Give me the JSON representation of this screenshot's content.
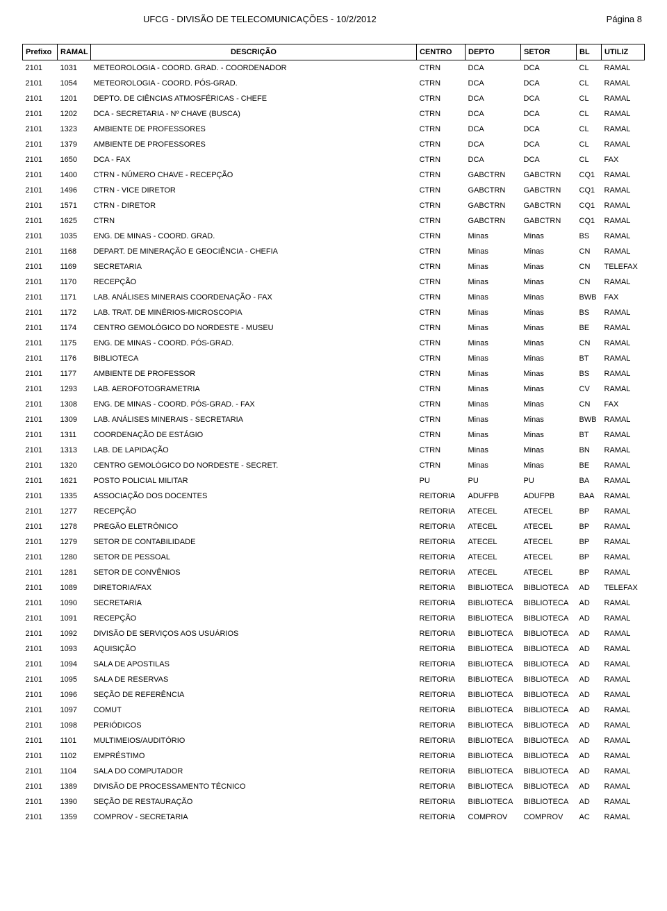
{
  "header": {
    "title": "UFCG - DIVISÃO DE TELECOMUNICAÇÕES  -  10/2/2012",
    "page": "Página 8"
  },
  "columns": [
    "Prefixo",
    "RAMAL",
    "DESCRIÇÃO",
    "CENTRO",
    "DEPTO",
    "SETOR",
    "BL",
    "UTILIZ"
  ],
  "rows": [
    [
      "2101",
      "1031",
      "METEOROLOGIA - COORD. GRAD. - COORDENADOR",
      "CTRN",
      "DCA",
      "DCA",
      "CL",
      "RAMAL"
    ],
    [
      "2101",
      "1054",
      "METEOROLOGIA - COORD. PÓS-GRAD.",
      "CTRN",
      "DCA",
      "DCA",
      "CL",
      "RAMAL"
    ],
    [
      "2101",
      "1201",
      "DEPTO. DE CIÊNCIAS ATMOSFÉRICAS - CHEFE",
      "CTRN",
      "DCA",
      "DCA",
      "CL",
      "RAMAL"
    ],
    [
      "2101",
      "1202",
      "DCA - SECRETARIA - Nº CHAVE (BUSCA)",
      "CTRN",
      "DCA",
      "DCA",
      "CL",
      "RAMAL"
    ],
    [
      "2101",
      "1323",
      "AMBIENTE DE PROFESSORES",
      "CTRN",
      "DCA",
      "DCA",
      "CL",
      "RAMAL"
    ],
    [
      "2101",
      "1379",
      "AMBIENTE DE PROFESSORES",
      "CTRN",
      "DCA",
      "DCA",
      "CL",
      "RAMAL"
    ],
    [
      "2101",
      "1650",
      "DCA - FAX",
      "CTRN",
      "DCA",
      "DCA",
      "CL",
      "FAX"
    ],
    [
      "2101",
      "1400",
      "CTRN - NÚMERO CHAVE - RECEPÇÃO",
      "CTRN",
      "GABCTRN",
      "GABCTRN",
      "CQ1",
      "RAMAL"
    ],
    [
      "2101",
      "1496",
      "CTRN - VICE DIRETOR",
      "CTRN",
      "GABCTRN",
      "GABCTRN",
      "CQ1",
      "RAMAL"
    ],
    [
      "2101",
      "1571",
      "CTRN - DIRETOR",
      "CTRN",
      "GABCTRN",
      "GABCTRN",
      "CQ1",
      "RAMAL"
    ],
    [
      "2101",
      "1625",
      "CTRN",
      "CTRN",
      "GABCTRN",
      "GABCTRN",
      "CQ1",
      "RAMAL"
    ],
    [
      "2101",
      "1035",
      "ENG. DE MINAS - COORD. GRAD.",
      "CTRN",
      "Minas",
      "Minas",
      "BS",
      "RAMAL"
    ],
    [
      "2101",
      "1168",
      "DEPART. DE MINERAÇÃO E GEOCIÊNCIA - CHEFIA",
      "CTRN",
      "Minas",
      "Minas",
      "CN",
      "RAMAL"
    ],
    [
      "2101",
      "1169",
      "SECRETARIA",
      "CTRN",
      "Minas",
      "Minas",
      "CN",
      "TELEFAX"
    ],
    [
      "2101",
      "1170",
      "RECEPÇÃO",
      "CTRN",
      "Minas",
      "Minas",
      "CN",
      "RAMAL"
    ],
    [
      "2101",
      "1171",
      "LAB. ANÁLISES MINERAIS COORDENAÇÃO - FAX",
      "CTRN",
      "Minas",
      "Minas",
      "BWB",
      "FAX"
    ],
    [
      "2101",
      "1172",
      "LAB. TRAT. DE MINÉRIOS-MICROSCOPIA",
      "CTRN",
      "Minas",
      "Minas",
      "BS",
      "RAMAL"
    ],
    [
      "2101",
      "1174",
      "CENTRO GEMOLÓGICO DO NORDESTE - MUSEU",
      "CTRN",
      "Minas",
      "Minas",
      "BE",
      "RAMAL"
    ],
    [
      "2101",
      "1175",
      "ENG. DE MINAS - COORD. PÓS-GRAD.",
      "CTRN",
      "Minas",
      "Minas",
      "CN",
      "RAMAL"
    ],
    [
      "2101",
      "1176",
      "BIBLIOTECA",
      "CTRN",
      "Minas",
      "Minas",
      "BT",
      "RAMAL"
    ],
    [
      "2101",
      "1177",
      "AMBIENTE DE PROFESSOR",
      "CTRN",
      "Minas",
      "Minas",
      "BS",
      "RAMAL"
    ],
    [
      "2101",
      "1293",
      "LAB. AEROFOTOGRAMETRIA",
      "CTRN",
      "Minas",
      "Minas",
      "CV",
      "RAMAL"
    ],
    [
      "2101",
      "1308",
      "ENG. DE MINAS - COORD. PÓS-GRAD. - FAX",
      "CTRN",
      "Minas",
      "Minas",
      "CN",
      "FAX"
    ],
    [
      "2101",
      "1309",
      "LAB. ANÁLISES MINERAIS - SECRETARIA",
      "CTRN",
      "Minas",
      "Minas",
      "BWB",
      "RAMAL"
    ],
    [
      "2101",
      "1311",
      "COORDENAÇÃO DE ESTÁGIO",
      "CTRN",
      "Minas",
      "Minas",
      "BT",
      "RAMAL"
    ],
    [
      "2101",
      "1313",
      "LAB. DE LAPIDAÇÃO",
      "CTRN",
      "Minas",
      "Minas",
      "BN",
      "RAMAL"
    ],
    [
      "2101",
      "1320",
      "CENTRO GEMOLÓGICO DO NORDESTE - SECRET.",
      "CTRN",
      "Minas",
      "Minas",
      "BE",
      "RAMAL"
    ],
    [
      "2101",
      "1621",
      "POSTO POLICIAL MILITAR",
      "PU",
      "PU",
      "PU",
      "BA",
      "RAMAL"
    ],
    [
      "2101",
      "1335",
      "ASSOCIAÇÃO DOS DOCENTES",
      "REITORIA",
      "ADUFPB",
      "ADUFPB",
      "BAA",
      "RAMAL"
    ],
    [
      "2101",
      "1277",
      "RECEPÇÃO",
      "REITORIA",
      "ATECEL",
      "ATECEL",
      "BP",
      "RAMAL"
    ],
    [
      "2101",
      "1278",
      "PREGÃO ELETRÔNICO",
      "REITORIA",
      "ATECEL",
      "ATECEL",
      "BP",
      "RAMAL"
    ],
    [
      "2101",
      "1279",
      "SETOR DE CONTABILIDADE",
      "REITORIA",
      "ATECEL",
      "ATECEL",
      "BP",
      "RAMAL"
    ],
    [
      "2101",
      "1280",
      "SETOR DE PESSOAL",
      "REITORIA",
      "ATECEL",
      "ATECEL",
      "BP",
      "RAMAL"
    ],
    [
      "2101",
      "1281",
      "SETOR DE CONVÊNIOS",
      "REITORIA",
      "ATECEL",
      "ATECEL",
      "BP",
      "RAMAL"
    ],
    [
      "2101",
      "1089",
      "DIRETORIA/FAX",
      "REITORIA",
      "BIBLIOTECA",
      "BIBLIOTECA",
      "AD",
      "TELEFAX"
    ],
    [
      "2101",
      "1090",
      "SECRETARIA",
      "REITORIA",
      "BIBLIOTECA",
      "BIBLIOTECA",
      "AD",
      "RAMAL"
    ],
    [
      "2101",
      "1091",
      "RECEPÇÃO",
      "REITORIA",
      "BIBLIOTECA",
      "BIBLIOTECA",
      "AD",
      "RAMAL"
    ],
    [
      "2101",
      "1092",
      "DIVISÃO DE SERVIÇOS AOS USUÁRIOS",
      "REITORIA",
      "BIBLIOTECA",
      "BIBLIOTECA",
      "AD",
      "RAMAL"
    ],
    [
      "2101",
      "1093",
      "AQUISIÇÃO",
      "REITORIA",
      "BIBLIOTECA",
      "BIBLIOTECA",
      "AD",
      "RAMAL"
    ],
    [
      "2101",
      "1094",
      "SALA DE APOSTILAS",
      "REITORIA",
      "BIBLIOTECA",
      "BIBLIOTECA",
      "AD",
      "RAMAL"
    ],
    [
      "2101",
      "1095",
      "SALA DE RESERVAS",
      "REITORIA",
      "BIBLIOTECA",
      "BIBLIOTECA",
      "AD",
      "RAMAL"
    ],
    [
      "2101",
      "1096",
      "SEÇÃO DE REFERÊNCIA",
      "REITORIA",
      "BIBLIOTECA",
      "BIBLIOTECA",
      "AD",
      "RAMAL"
    ],
    [
      "2101",
      "1097",
      "COMUT",
      "REITORIA",
      "BIBLIOTECA",
      "BIBLIOTECA",
      "AD",
      "RAMAL"
    ],
    [
      "2101",
      "1098",
      "PERIÓDICOS",
      "REITORIA",
      "BIBLIOTECA",
      "BIBLIOTECA",
      "AD",
      "RAMAL"
    ],
    [
      "2101",
      "1101",
      "MULTIMEIOS/AUDITÓRIO",
      "REITORIA",
      "BIBLIOTECA",
      "BIBLIOTECA",
      "AD",
      "RAMAL"
    ],
    [
      "2101",
      "1102",
      "EMPRÉSTIMO",
      "REITORIA",
      "BIBLIOTECA",
      "BIBLIOTECA",
      "AD",
      "RAMAL"
    ],
    [
      "2101",
      "1104",
      "SALA DO COMPUTADOR",
      "REITORIA",
      "BIBLIOTECA",
      "BIBLIOTECA",
      "AD",
      "RAMAL"
    ],
    [
      "2101",
      "1389",
      "DIVISÃO DE PROCESSAMENTO TÉCNICO",
      "REITORIA",
      "BIBLIOTECA",
      "BIBLIOTECA",
      "AD",
      "RAMAL"
    ],
    [
      "2101",
      "1390",
      "SEÇÃO DE RESTAURAÇÃO",
      "REITORIA",
      "BIBLIOTECA",
      "BIBLIOTECA",
      "AD",
      "RAMAL"
    ],
    [
      "2101",
      "1359",
      "COMPROV - SECRETARIA",
      "REITORIA",
      "COMPROV",
      "COMPROV",
      "AC",
      "RAMAL"
    ]
  ]
}
